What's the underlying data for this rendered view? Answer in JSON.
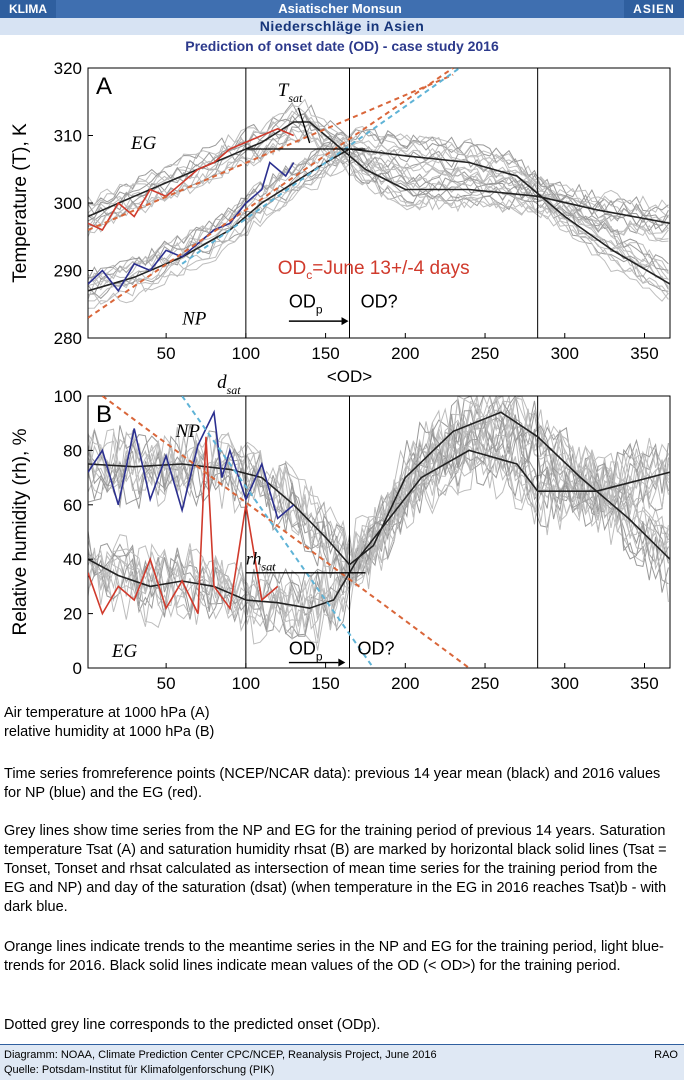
{
  "header": {
    "left_tag": "KLIMA",
    "title": "Asiatischer Monsun",
    "right_tag": "ASIEN",
    "subtitle": "Niederschläge in Asien"
  },
  "chart_title": "Prediction of onset date (OD) -  case study 2016",
  "chart_data": [
    {
      "type": "line",
      "panel_label": "A",
      "ylabel": "Temperature (T), K",
      "xlabel": "",
      "xlim": [
        1,
        366
      ],
      "ylim": [
        280,
        320
      ],
      "xticks": [
        50,
        100,
        150,
        200,
        250,
        300,
        350
      ],
      "yticks": [
        280,
        290,
        300,
        310,
        320
      ],
      "annotations": {
        "tsat": "T",
        "tsat_sub": "sat",
        "eg": "EG",
        "np": "NP",
        "od_text": "OD",
        "od_sub": "c",
        "od_rest": "=June 13+/-4 days",
        "odp": "OD",
        "odp_sub": "p",
        "od_q": "OD?",
        "od_mean": "<OD>"
      },
      "vlines": [
        100,
        165,
        283
      ],
      "series": [
        {
          "key": "eg_mean",
          "color": "#222222",
          "x": [
            1,
            30,
            60,
            90,
            110,
            130,
            140,
            155,
            175,
            200,
            240,
            283,
            320,
            366
          ],
          "values": [
            298,
            301,
            304,
            307,
            309,
            312,
            312,
            309,
            305,
            302,
            302,
            301,
            299,
            297
          ]
        },
        {
          "key": "np_mean",
          "color": "#222222",
          "x": [
            1,
            30,
            60,
            90,
            110,
            130,
            150,
            165,
            200,
            240,
            270,
            300,
            330,
            366
          ],
          "values": [
            287,
            289,
            292,
            296,
            300,
            303,
            306,
            308,
            307,
            306,
            304,
            298,
            293,
            288
          ]
        },
        {
          "key": "eg_2016",
          "color": "#d03a2c",
          "x": [
            1,
            10,
            20,
            30,
            40,
            50,
            60,
            70,
            80,
            90,
            100,
            110,
            120,
            130
          ],
          "values": [
            297,
            296,
            300,
            298,
            302,
            301,
            303,
            305,
            306,
            308,
            309,
            310,
            311,
            310
          ]
        },
        {
          "key": "np_2016",
          "color": "#2b2f8f",
          "x": [
            1,
            10,
            20,
            30,
            40,
            50,
            60,
            70,
            80,
            90,
            100,
            110,
            115,
            125,
            130
          ],
          "values": [
            288,
            290,
            287,
            291,
            290,
            293,
            292,
            294,
            296,
            297,
            300,
            302,
            306,
            304,
            306
          ]
        },
        {
          "key": "trend_eg",
          "color": "#d9663a",
          "dash": "5,4",
          "x": [
            1,
            230
          ],
          "values": [
            296,
            319
          ]
        },
        {
          "key": "trend_np",
          "color": "#d9663a",
          "dash": "5,4",
          "x": [
            1,
            230
          ],
          "values": [
            283,
            320
          ]
        },
        {
          "key": "trend_2016",
          "color": "#5fb3d6",
          "dash": "5,4",
          "x": [
            60,
            240
          ],
          "values": [
            291,
            321
          ]
        }
      ],
      "tsat_value": 308
    },
    {
      "type": "line",
      "panel_label": "B",
      "ylabel": "Relative humidity (rh), %",
      "xlabel": "",
      "xlim": [
        1,
        366
      ],
      "ylim": [
        0,
        100
      ],
      "xticks": [
        50,
        100,
        150,
        200,
        250,
        300,
        350
      ],
      "yticks": [
        0,
        20,
        40,
        60,
        80,
        100
      ],
      "annotations": {
        "dsat": "d",
        "dsat_sub": "sat",
        "rhsat": "rh",
        "rhsat_sub": "sat",
        "eg": "EG",
        "np": "NP",
        "odp": "OD",
        "odp_sub": "p",
        "od_q": "OD?"
      },
      "vlines": [
        100,
        165,
        283
      ],
      "series": [
        {
          "key": "np_mean",
          "color": "#222222",
          "x": [
            1,
            30,
            60,
            90,
            110,
            130,
            150,
            165,
            180,
            200,
            230,
            260,
            283,
            310,
            340,
            366
          ],
          "values": [
            75,
            74,
            75,
            73,
            70,
            60,
            48,
            38,
            45,
            70,
            87,
            94,
            85,
            70,
            55,
            40
          ]
        },
        {
          "key": "eg_mean",
          "color": "#222222",
          "x": [
            1,
            20,
            40,
            60,
            80,
            100,
            120,
            140,
            155,
            170,
            190,
            210,
            240,
            270,
            283,
            320,
            366
          ],
          "values": [
            40,
            34,
            30,
            32,
            30,
            25,
            24,
            22,
            25,
            40,
            55,
            70,
            80,
            75,
            65,
            65,
            72
          ]
        },
        {
          "key": "np_2016",
          "color": "#2b2f8f",
          "x": [
            1,
            10,
            20,
            30,
            40,
            50,
            60,
            70,
            80,
            85,
            90,
            100,
            110,
            120,
            130
          ],
          "values": [
            72,
            80,
            60,
            88,
            62,
            78,
            58,
            82,
            94,
            70,
            80,
            62,
            75,
            55,
            60
          ]
        },
        {
          "key": "eg_2016",
          "color": "#d03a2c",
          "x": [
            1,
            10,
            20,
            30,
            40,
            50,
            60,
            70,
            75,
            80,
            90,
            100,
            110,
            120
          ],
          "values": [
            35,
            20,
            30,
            25,
            40,
            22,
            32,
            20,
            85,
            30,
            22,
            60,
            25,
            30
          ]
        },
        {
          "key": "trend_np",
          "color": "#d9663a",
          "dash": "5,4",
          "x": [
            10,
            240
          ],
          "values": [
            100,
            0
          ]
        },
        {
          "key": "trend_2016",
          "color": "#5fb3d6",
          "dash": "5,4",
          "x": [
            60,
            180
          ],
          "values": [
            100,
            0
          ]
        }
      ],
      "rhsat_value": 35
    }
  ],
  "description": [
    "Air temperature at 1000 hPa (A)",
    "relative humidity at 1000 hPa (B)",
    "Time series fromreference points (NCEP/NCAR data): previous 14 year mean (black) and 2016 values for NP (blue) and the EG (red).",
    "Grey lines show time series from the NP and EG for the training period of previous 14 years. Saturation temperature Tsat (A) and saturation humidity rhsat (B) are marked by horizontal black solid lines (Tsat = Tonset, Tonset and rhsat calculated as intersection of mean time series for the training period from the EG and NP) and day of the saturation (dsat) (when temperature in the EG in 2016 reaches Tsat)b - with dark blue.",
    "Orange lines indicate trends to the meantime series in the NP and EG for the training period, light blue-trends for 2016. Black solid lines indicate mean values of the OD (< OD>) for the training period.",
    "Dotted grey line corresponds to the predicted onset (ODp)."
  ],
  "footer": {
    "source1": "Diagramm: NOAA, Climate Prediction Center CPC/NCEP, Reanalysis Project, June 2016",
    "source2": "Quelle: Potsdam-Institut für Klimafolgenforschung (PIK)",
    "right": "RAO"
  }
}
